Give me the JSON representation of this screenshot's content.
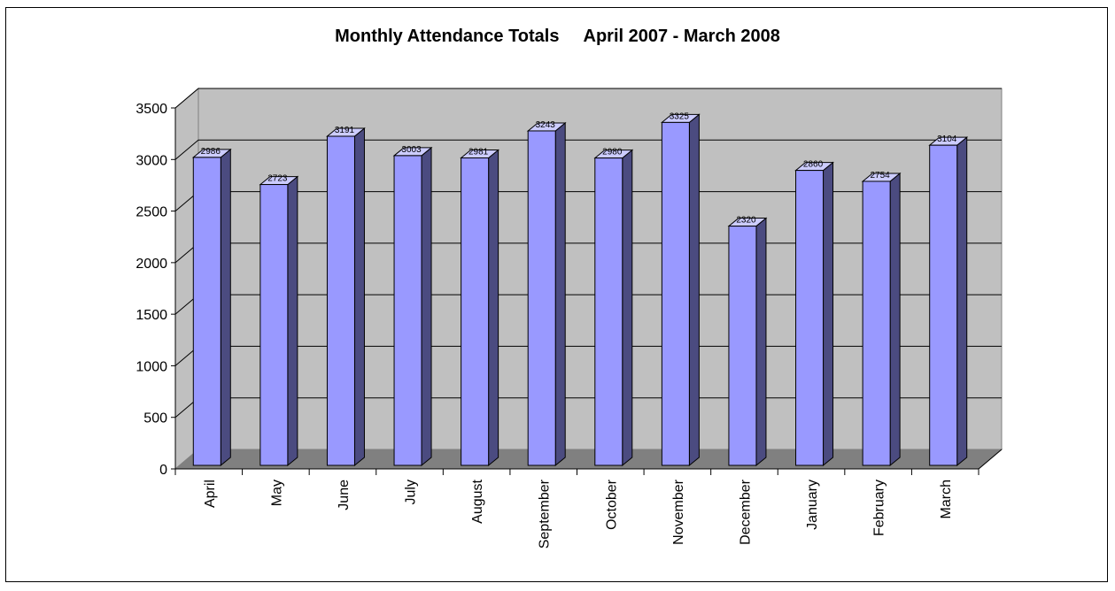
{
  "chart_data": {
    "type": "bar",
    "title": "Monthly Attendance Totals     April 2007 - March 2008",
    "xlabel": "",
    "ylabel": "",
    "categories": [
      "April",
      "May",
      "June",
      "July",
      "August",
      "September",
      "October",
      "November",
      "December",
      "January",
      "February",
      "March"
    ],
    "values": [
      2986,
      2723,
      3191,
      3003,
      2981,
      3243,
      2980,
      3325,
      2320,
      2860,
      2754,
      3104
    ],
    "value_labels": [
      "2986",
      "2723",
      "3191",
      "3003",
      "2981",
      "3243",
      "2980",
      "3325",
      "2320",
      "2860",
      "2754",
      "3104"
    ],
    "yticks": [
      0,
      500,
      1000,
      1500,
      2000,
      2500,
      3000,
      3500
    ],
    "ylim": [
      0,
      3500
    ],
    "grid": true,
    "legend": "none",
    "style": "3d-column",
    "colors": {
      "bar_front": "#9999ff",
      "bar_side": "#4b4b80",
      "bar_top": "#ccccff",
      "wall": "#c0c0c0",
      "floor": "#808080",
      "gridline": "#000000"
    }
  }
}
